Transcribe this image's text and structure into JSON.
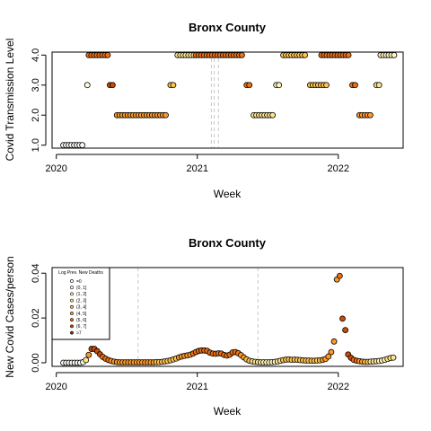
{
  "chart_data": [
    {
      "type": "scatter",
      "title": "Bronx County",
      "xlabel": "Week",
      "ylabel": "Covid Transmission Level",
      "xlim": [
        2019.97,
        2022.46
      ],
      "ylim": [
        0.9,
        4.1
      ],
      "xticks": [
        2020,
        2021,
        2022
      ],
      "xtick_labels": [
        "2020",
        "2021",
        "2022"
      ],
      "yticks": [
        1,
        2,
        3,
        4
      ],
      "ytick_labels": [
        "1.0",
        "2.0",
        "3.0",
        "4.0"
      ],
      "vlines": [
        2021.1,
        2021.12,
        2021.15
      ],
      "segments": [
        {
          "x_start": 2020.05,
          "x_end": 2020.2,
          "y": 1,
          "color": "#f7fcf5"
        },
        {
          "x_start": 2020.22,
          "x_end": 2020.22,
          "y": 3,
          "color": "#ffffe5"
        },
        {
          "x_start": 2020.23,
          "x_end": 2020.37,
          "y": 4,
          "color": "#ec7014"
        },
        {
          "x_start": 2020.38,
          "x_end": 2020.41,
          "y": 3,
          "color": "#cc4c02"
        },
        {
          "x_start": 2020.43,
          "x_end": 2020.79,
          "y": 2,
          "color": "#fb9a29"
        },
        {
          "x_start": 2020.81,
          "x_end": 2020.84,
          "y": 3,
          "color": "#fec44f"
        },
        {
          "x_start": 2020.86,
          "x_end": 2020.98,
          "y": 4,
          "color": "#fee391"
        },
        {
          "x_start": 2020.99,
          "x_end": 2021.33,
          "y": 4,
          "color": "#ec7014"
        },
        {
          "x_start": 2021.35,
          "x_end": 2021.38,
          "y": 3,
          "color": "#ec7014"
        },
        {
          "x_start": 2021.4,
          "x_end": 2021.54,
          "y": 2,
          "color": "#fee391"
        },
        {
          "x_start": 2021.56,
          "x_end": 2021.58,
          "y": 3,
          "color": "#fff7bc"
        },
        {
          "x_start": 2021.61,
          "x_end": 2021.78,
          "y": 4,
          "color": "#fec44f"
        },
        {
          "x_start": 2021.8,
          "x_end": 2021.92,
          "y": 3,
          "color": "#fec44f"
        },
        {
          "x_start": 2021.88,
          "x_end": 2022.09,
          "y": 4,
          "color": "#ec7014"
        },
        {
          "x_start": 2022.1,
          "x_end": 2022.13,
          "y": 3,
          "color": "#ec7014"
        },
        {
          "x_start": 2022.15,
          "x_end": 2022.24,
          "y": 2,
          "color": "#fe9929"
        },
        {
          "x_start": 2022.27,
          "x_end": 2022.29,
          "y": 3,
          "color": "#fee391"
        },
        {
          "x_start": 2022.3,
          "x_end": 2022.4,
          "y": 4,
          "color": "#fff7bc"
        }
      ]
    },
    {
      "type": "scatter",
      "title": "Bronx County",
      "xlabel": "Week",
      "ylabel": "New Covid Cases/person",
      "xlim": [
        2019.97,
        2022.46
      ],
      "ylim": [
        -0.0016,
        0.0425
      ],
      "xticks": [
        2020,
        2021,
        2022
      ],
      "xtick_labels": [
        "2020",
        "2021",
        "2022"
      ],
      "yticks": [
        0,
        0.02,
        0.04
      ],
      "ytick_labels": [
        "0.00",
        "0.02",
        "0.04"
      ],
      "vlines": [
        2020.58,
        2021.43
      ],
      "legend": {
        "title": "Log Prev. New Deaths",
        "position": "top-left",
        "entries": [
          "=0",
          "(0, 1]",
          "(1, 2]",
          "(2, 3]",
          "(3, 4]",
          "(4, 5]",
          "(5, 6]",
          "(6, 7]",
          ">7"
        ],
        "colors": [
          "#ffffff",
          "#ffffe5",
          "#fff7bc",
          "#fee391",
          "#fec44f",
          "#fe9929",
          "#ec7014",
          "#cc4c02",
          "#8c2d04"
        ]
      },
      "points": [
        {
          "x": 2020.05,
          "y": 0.0,
          "color": "#f7fcf5"
        },
        {
          "x": 2020.07,
          "y": 0.0,
          "color": "#f7fcf5"
        },
        {
          "x": 2020.09,
          "y": 0.0,
          "color": "#f7fcf5"
        },
        {
          "x": 2020.11,
          "y": 0.0,
          "color": "#f7fcf5"
        },
        {
          "x": 2020.13,
          "y": 0.0,
          "color": "#f7fcf5"
        },
        {
          "x": 2020.15,
          "y": 0.0,
          "color": "#f7fcf5"
        },
        {
          "x": 2020.17,
          "y": 0.0,
          "color": "#f7fcf5"
        },
        {
          "x": 2020.19,
          "y": 0.0003,
          "color": "#ffffe5"
        },
        {
          "x": 2020.21,
          "y": 0.0012,
          "color": "#fee391"
        },
        {
          "x": 2020.23,
          "y": 0.0035,
          "color": "#fe9929"
        },
        {
          "x": 2020.25,
          "y": 0.0062,
          "color": "#cc4c02"
        },
        {
          "x": 2020.27,
          "y": 0.0062,
          "color": "#cc4c02"
        },
        {
          "x": 2020.29,
          "y": 0.0052,
          "color": "#cc4c02"
        },
        {
          "x": 2020.31,
          "y": 0.0038,
          "color": "#cc4c02"
        },
        {
          "x": 2020.33,
          "y": 0.0026,
          "color": "#ec7014"
        },
        {
          "x": 2020.35,
          "y": 0.0018,
          "color": "#ec7014"
        },
        {
          "x": 2020.37,
          "y": 0.0012,
          "color": "#ec7014"
        },
        {
          "x": 2020.39,
          "y": 0.0008,
          "color": "#fe9929"
        },
        {
          "x": 2020.41,
          "y": 0.0005,
          "color": "#fe9929"
        },
        {
          "x": 2020.43,
          "y": 0.0003,
          "color": "#fe9929"
        },
        {
          "x": 2020.45,
          "y": 0.0002,
          "color": "#fe9929"
        },
        {
          "x": 2020.47,
          "y": 0.0002,
          "color": "#fe9929"
        },
        {
          "x": 2020.49,
          "y": 0.0002,
          "color": "#fe9929"
        },
        {
          "x": 2020.51,
          "y": 0.0002,
          "color": "#fe9929"
        },
        {
          "x": 2020.53,
          "y": 0.0002,
          "color": "#fe9929"
        },
        {
          "x": 2020.55,
          "y": 0.0002,
          "color": "#fe9929"
        },
        {
          "x": 2020.57,
          "y": 0.0002,
          "color": "#fe9929"
        },
        {
          "x": 2020.59,
          "y": 0.0002,
          "color": "#fe9929"
        },
        {
          "x": 2020.61,
          "y": 0.0002,
          "color": "#fe9929"
        },
        {
          "x": 2020.63,
          "y": 0.0002,
          "color": "#fe9929"
        },
        {
          "x": 2020.65,
          "y": 0.0002,
          "color": "#fe9929"
        },
        {
          "x": 2020.67,
          "y": 0.0002,
          "color": "#fe9929"
        },
        {
          "x": 2020.69,
          "y": 0.0002,
          "color": "#fe9929"
        },
        {
          "x": 2020.71,
          "y": 0.0003,
          "color": "#fec44f"
        },
        {
          "x": 2020.73,
          "y": 0.0003,
          "color": "#fec44f"
        },
        {
          "x": 2020.75,
          "y": 0.0004,
          "color": "#fec44f"
        },
        {
          "x": 2020.77,
          "y": 0.0006,
          "color": "#fec44f"
        },
        {
          "x": 2020.79,
          "y": 0.0008,
          "color": "#fec44f"
        },
        {
          "x": 2020.81,
          "y": 0.0011,
          "color": "#fec44f"
        },
        {
          "x": 2020.83,
          "y": 0.0015,
          "color": "#fec44f"
        },
        {
          "x": 2020.85,
          "y": 0.0019,
          "color": "#fec44f"
        },
        {
          "x": 2020.87,
          "y": 0.0024,
          "color": "#fe9929"
        },
        {
          "x": 2020.89,
          "y": 0.0028,
          "color": "#fe9929"
        },
        {
          "x": 2020.91,
          "y": 0.0031,
          "color": "#fe9929"
        },
        {
          "x": 2020.93,
          "y": 0.0033,
          "color": "#fe9929"
        },
        {
          "x": 2020.95,
          "y": 0.0036,
          "color": "#fe9929"
        },
        {
          "x": 2020.97,
          "y": 0.0041,
          "color": "#ec7014"
        },
        {
          "x": 2020.99,
          "y": 0.0048,
          "color": "#ec7014"
        },
        {
          "x": 2021.01,
          "y": 0.0053,
          "color": "#ec7014"
        },
        {
          "x": 2021.03,
          "y": 0.0055,
          "color": "#ec7014"
        },
        {
          "x": 2021.05,
          "y": 0.0055,
          "color": "#ec7014"
        },
        {
          "x": 2021.07,
          "y": 0.0053,
          "color": "#ec7014"
        },
        {
          "x": 2021.09,
          "y": 0.0045,
          "color": "#ec7014"
        },
        {
          "x": 2021.11,
          "y": 0.0041,
          "color": "#ec7014"
        },
        {
          "x": 2021.13,
          "y": 0.004,
          "color": "#ec7014"
        },
        {
          "x": 2021.15,
          "y": 0.0042,
          "color": "#ec7014"
        },
        {
          "x": 2021.17,
          "y": 0.0041,
          "color": "#ec7014"
        },
        {
          "x": 2021.19,
          "y": 0.0035,
          "color": "#ec7014"
        },
        {
          "x": 2021.21,
          "y": 0.0032,
          "color": "#ec7014"
        },
        {
          "x": 2021.23,
          "y": 0.0036,
          "color": "#ec7014"
        },
        {
          "x": 2021.25,
          "y": 0.0046,
          "color": "#ec7014"
        },
        {
          "x": 2021.27,
          "y": 0.0048,
          "color": "#ec7014"
        },
        {
          "x": 2021.29,
          "y": 0.0043,
          "color": "#ec7014"
        },
        {
          "x": 2021.31,
          "y": 0.0034,
          "color": "#fe9929"
        },
        {
          "x": 2021.33,
          "y": 0.0024,
          "color": "#fe9929"
        },
        {
          "x": 2021.35,
          "y": 0.0015,
          "color": "#fec44f"
        },
        {
          "x": 2021.37,
          "y": 0.0009,
          "color": "#fec44f"
        },
        {
          "x": 2021.39,
          "y": 0.0006,
          "color": "#fee391"
        },
        {
          "x": 2021.41,
          "y": 0.0004,
          "color": "#fee391"
        },
        {
          "x": 2021.43,
          "y": 0.0003,
          "color": "#fee391"
        },
        {
          "x": 2021.45,
          "y": 0.0002,
          "color": "#fee391"
        },
        {
          "x": 2021.47,
          "y": 0.0002,
          "color": "#fff7bc"
        },
        {
          "x": 2021.49,
          "y": 0.0002,
          "color": "#fff7bc"
        },
        {
          "x": 2021.51,
          "y": 0.0002,
          "color": "#fff7bc"
        },
        {
          "x": 2021.53,
          "y": 0.0003,
          "color": "#fff7bc"
        },
        {
          "x": 2021.55,
          "y": 0.0004,
          "color": "#fff7bc"
        },
        {
          "x": 2021.57,
          "y": 0.0006,
          "color": "#fee391"
        },
        {
          "x": 2021.59,
          "y": 0.0009,
          "color": "#fee391"
        },
        {
          "x": 2021.61,
          "y": 0.0012,
          "color": "#fec44f"
        },
        {
          "x": 2021.63,
          "y": 0.0014,
          "color": "#fec44f"
        },
        {
          "x": 2021.65,
          "y": 0.0015,
          "color": "#fec44f"
        },
        {
          "x": 2021.67,
          "y": 0.0013,
          "color": "#fec44f"
        },
        {
          "x": 2021.69,
          "y": 0.0014,
          "color": "#fec44f"
        },
        {
          "x": 2021.71,
          "y": 0.0013,
          "color": "#fec44f"
        },
        {
          "x": 2021.73,
          "y": 0.0012,
          "color": "#fec44f"
        },
        {
          "x": 2021.75,
          "y": 0.0011,
          "color": "#fec44f"
        },
        {
          "x": 2021.77,
          "y": 0.001,
          "color": "#fec44f"
        },
        {
          "x": 2021.79,
          "y": 0.001,
          "color": "#fec44f"
        },
        {
          "x": 2021.81,
          "y": 0.0009,
          "color": "#fec44f"
        },
        {
          "x": 2021.83,
          "y": 0.0009,
          "color": "#fec44f"
        },
        {
          "x": 2021.85,
          "y": 0.001,
          "color": "#fec44f"
        },
        {
          "x": 2021.87,
          "y": 0.0011,
          "color": "#fec44f"
        },
        {
          "x": 2021.89,
          "y": 0.0013,
          "color": "#fe9929"
        },
        {
          "x": 2021.91,
          "y": 0.0017,
          "color": "#fe9929"
        },
        {
          "x": 2021.93,
          "y": 0.0028,
          "color": "#fe9929"
        },
        {
          "x": 2021.95,
          "y": 0.0048,
          "color": "#fe9929"
        },
        {
          "x": 2021.97,
          "y": 0.0095,
          "color": "#fe9929"
        },
        {
          "x": 2021.99,
          "y": 0.0372,
          "color": "#fe9929"
        },
        {
          "x": 2022.01,
          "y": 0.0388,
          "color": "#ec7014"
        },
        {
          "x": 2022.03,
          "y": 0.0197,
          "color": "#cc4c02"
        },
        {
          "x": 2022.05,
          "y": 0.0146,
          "color": "#cc4c02"
        },
        {
          "x": 2022.07,
          "y": 0.0037,
          "color": "#cc4c02"
        },
        {
          "x": 2022.09,
          "y": 0.0022,
          "color": "#cc4c02"
        },
        {
          "x": 2022.11,
          "y": 0.0013,
          "color": "#ec7014"
        },
        {
          "x": 2022.13,
          "y": 0.0009,
          "color": "#ec7014"
        },
        {
          "x": 2022.15,
          "y": 0.0007,
          "color": "#fe9929"
        },
        {
          "x": 2022.17,
          "y": 0.0005,
          "color": "#fe9929"
        },
        {
          "x": 2022.19,
          "y": 0.0004,
          "color": "#fec44f"
        },
        {
          "x": 2022.21,
          "y": 0.0004,
          "color": "#fec44f"
        },
        {
          "x": 2022.23,
          "y": 0.0005,
          "color": "#fee391"
        },
        {
          "x": 2022.25,
          "y": 0.0006,
          "color": "#fee391"
        },
        {
          "x": 2022.27,
          "y": 0.0007,
          "color": "#fee391"
        },
        {
          "x": 2022.29,
          "y": 0.0008,
          "color": "#fff7bc"
        },
        {
          "x": 2022.31,
          "y": 0.001,
          "color": "#fff7bc"
        },
        {
          "x": 2022.33,
          "y": 0.0013,
          "color": "#fff7bc"
        },
        {
          "x": 2022.35,
          "y": 0.0017,
          "color": "#fee391"
        },
        {
          "x": 2022.37,
          "y": 0.0021,
          "color": "#fee391"
        },
        {
          "x": 2022.39,
          "y": 0.0023,
          "color": "#fee391"
        }
      ]
    }
  ]
}
